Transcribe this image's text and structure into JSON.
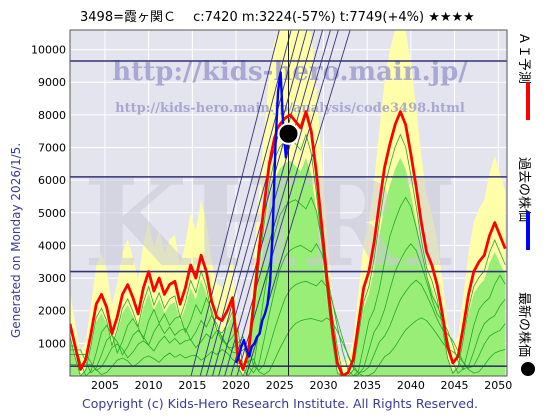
{
  "header": {
    "title": "3498=霞ヶ関Ｃ　 c:7420  m:3224(-57%)  t:7749(+4%)  ★★★★"
  },
  "watermark": {
    "url1": "http://kids-hero.main.jp/",
    "url2": "http://kids-hero.main.jp/analysis/code3498.html",
    "logo": "KHRI"
  },
  "side_caption": "Generated on Monday 2026/1/5.",
  "footer": "Copyright (c) Kids-Hero Research Institute. All Rights Reserved.",
  "legend": [
    {
      "label": "ＡＩ予測",
      "color": "#ff0000"
    },
    {
      "label": "過去の株価",
      "color": "#0000ff"
    },
    {
      "label": "最新の株価",
      "color": "#000000"
    }
  ],
  "colors": {
    "plot_bg": "#e4e4ee",
    "green_fill": "#99ee77",
    "yellow_fill": "#ffffaa",
    "green_line": "#22aa22",
    "band_line": "#333377",
    "trend_line": "#333377",
    "ai_line": "#ff0000",
    "price_line": "#0000ff"
  },
  "chart_data": {
    "type": "line",
    "xlim": [
      2001,
      2051
    ],
    "ylim": [
      0,
      10600
    ],
    "x_ticks": [
      2005,
      2010,
      2015,
      2020,
      2025,
      2030,
      2035,
      2040,
      2045,
      2050
    ],
    "y_ticks": [
      1000,
      2000,
      3000,
      4000,
      5000,
      6000,
      7000,
      8000,
      9000,
      10000
    ],
    "latest_point": {
      "x": 2026.0,
      "y": 7420
    },
    "horizontal_levels": [
      9650,
      6100,
      3200,
      300
    ],
    "vertical_marker_x": 2026.0,
    "series": [
      {
        "key": "ai",
        "x": [
          2001.0,
          2001.6,
          2002.2,
          2002.8,
          2003.4,
          2004.0,
          2004.6,
          2005.2,
          2005.8,
          2006.4,
          2007.0,
          2007.6,
          2008.2,
          2008.8,
          2009.4,
          2010.0,
          2010.6,
          2011.2,
          2011.8,
          2012.4,
          2013.0,
          2013.6,
          2014.2,
          2014.8,
          2015.4,
          2016.0,
          2016.6,
          2017.2,
          2017.8,
          2018.4,
          2019.0,
          2019.6,
          2020.2,
          2020.8,
          2021.4,
          2022.0,
          2022.6,
          2023.2,
          2023.8,
          2024.4,
          2025.0,
          2025.6,
          2026.2,
          2026.8,
          2027.4,
          2028.0,
          2028.6,
          2029.2,
          2029.8,
          2030.4,
          2031.0,
          2031.6,
          2032.2,
          2032.8,
          2033.4,
          2034.0,
          2034.6,
          2035.2,
          2035.8,
          2036.4,
          2037.0,
          2037.6,
          2038.2,
          2038.8,
          2039.4,
          2040.0,
          2040.6,
          2041.2,
          2041.8,
          2042.4,
          2043.0,
          2043.6,
          2044.2,
          2044.8,
          2045.4,
          2046.0,
          2046.6,
          2047.2,
          2047.8,
          2048.4,
          2049.0,
          2049.6,
          2050.2,
          2050.8
        ],
        "y": [
          1600,
          900,
          200,
          500,
          1300,
          2200,
          2500,
          2100,
          1300,
          1800,
          2500,
          2800,
          2400,
          1900,
          2700,
          3200,
          2600,
          3000,
          2500,
          2800,
          2900,
          2200,
          2700,
          3400,
          3000,
          3700,
          3200,
          2300,
          1800,
          1700,
          2000,
          2400,
          600,
          200,
          700,
          2200,
          3800,
          5200,
          6500,
          7300,
          7700,
          7900,
          8000,
          7800,
          7600,
          8100,
          7500,
          6200,
          4600,
          3000,
          1500,
          400,
          0,
          100,
          500,
          1600,
          2700,
          3200,
          4100,
          5300,
          6400,
          7100,
          7700,
          8100,
          7700,
          6800,
          5800,
          4700,
          3800,
          3400,
          2800,
          1900,
          900,
          400,
          600,
          1500,
          2500,
          3200,
          3500,
          3700,
          4300,
          4700,
          4300,
          3900
        ]
      },
      {
        "key": "price",
        "x": [
          2020.0,
          2020.3,
          2020.6,
          2020.9,
          2021.2,
          2021.5,
          2021.8,
          2022.1,
          2022.4,
          2022.7,
          2023.0,
          2023.3,
          2023.6,
          2023.9,
          2024.2,
          2024.5,
          2024.8,
          2025.1,
          2025.4,
          2025.7,
          2026.0
        ],
        "y": [
          400,
          600,
          900,
          1100,
          800,
          600,
          900,
          1000,
          1200,
          1300,
          1700,
          1900,
          2200,
          2900,
          4500,
          7000,
          8700,
          9300,
          7600,
          6700,
          7420
        ]
      }
    ]
  }
}
